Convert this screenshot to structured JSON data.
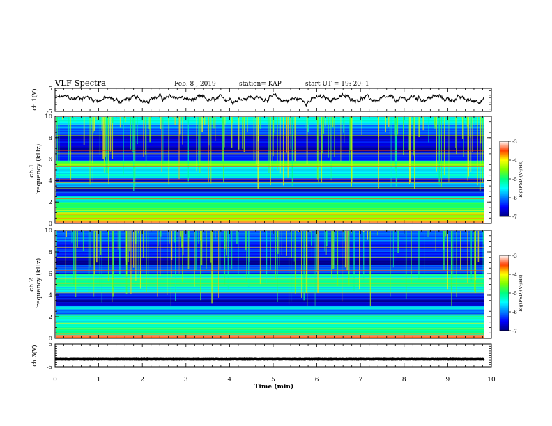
{
  "header": {
    "title": "VLF Spectra",
    "date": "Feb. 8  , 2019",
    "station": "station= KAP",
    "start_ut": "start  UT =   19: 20: 1"
  },
  "colorbar": {
    "ticks": [
      "-3",
      "-4",
      "-5",
      "-6",
      "-7"
    ],
    "label": "log(PSD)(V²/Hz)",
    "range": [
      -7,
      -3
    ]
  },
  "chart_data": [
    {
      "type": "line",
      "name": "ch1-waveform-panel",
      "ylabel": "ch.1(V)",
      "ylim": [
        -5,
        5
      ],
      "yticks": [
        "5",
        "-5"
      ],
      "xlim": [
        0,
        10
      ],
      "approx_level": 0.5,
      "approx_amplitude": 1.8
    },
    {
      "type": "heatmap",
      "name": "ch1-spectrogram",
      "ylabel_lines": [
        "ch.1",
        "Frequency (kHz)"
      ],
      "ylim": [
        0,
        10
      ],
      "yticks": [
        "0",
        "2",
        "4",
        "6",
        "8",
        "10"
      ],
      "xlim": [
        0,
        10
      ],
      "data_end_min": 9.83,
      "bands": [
        {
          "from": 0.0,
          "to": 0.3,
          "level": -3.6
        },
        {
          "from": 0.3,
          "to": 1.0,
          "level": -4.4
        },
        {
          "from": 1.0,
          "to": 1.9,
          "level": -4.9
        },
        {
          "from": 1.9,
          "to": 2.5,
          "level": -5.3
        },
        {
          "from": 2.5,
          "to": 2.9,
          "level": -6.2
        },
        {
          "from": 2.9,
          "to": 3.4,
          "level": -6.9
        },
        {
          "from": 3.4,
          "to": 3.9,
          "level": -5.8
        },
        {
          "from": 3.9,
          "to": 4.2,
          "level": -6.6
        },
        {
          "from": 4.2,
          "to": 5.3,
          "level": -5.5
        },
        {
          "from": 5.3,
          "to": 5.8,
          "level": -4.7
        },
        {
          "from": 5.8,
          "to": 6.6,
          "level": -6.4
        },
        {
          "from": 6.6,
          "to": 7.2,
          "level": -6.8
        },
        {
          "from": 7.2,
          "to": 8.3,
          "level": -6.6
        },
        {
          "from": 8.3,
          "to": 9.2,
          "level": -6.1
        },
        {
          "from": 9.2,
          "to": 10.0,
          "level": -5.5
        }
      ],
      "lines_khz": [
        0.5,
        0.8,
        1.2,
        2.3,
        3.3,
        3.8,
        4.1,
        5.3,
        5.5,
        6.5,
        6.8,
        7.3,
        8.2,
        9.2
      ]
    },
    {
      "type": "heatmap",
      "name": "ch2-spectrogram",
      "ylabel_lines": [
        "ch.2",
        "Frequency (kHz)"
      ],
      "ylim": [
        0,
        10
      ],
      "yticks": [
        "0",
        "2",
        "4",
        "6",
        "8",
        "10"
      ],
      "xlim": [
        0,
        10
      ],
      "data_end_min": 9.83,
      "bands": [
        {
          "from": 0.0,
          "to": 0.3,
          "level": -3.4
        },
        {
          "from": 0.3,
          "to": 1.0,
          "level": -5.0
        },
        {
          "from": 1.0,
          "to": 2.2,
          "level": -5.3
        },
        {
          "from": 2.2,
          "to": 2.6,
          "level": -6.1
        },
        {
          "from": 2.6,
          "to": 3.0,
          "level": -5.6
        },
        {
          "from": 3.0,
          "to": 3.6,
          "level": -6.9
        },
        {
          "from": 3.6,
          "to": 4.2,
          "level": -6.6
        },
        {
          "from": 4.2,
          "to": 4.8,
          "level": -5.4
        },
        {
          "from": 4.8,
          "to": 6.0,
          "level": -5.2
        },
        {
          "from": 6.0,
          "to": 6.8,
          "level": -6.3
        },
        {
          "from": 6.8,
          "to": 7.5,
          "level": -6.9
        },
        {
          "from": 7.5,
          "to": 9.0,
          "level": -6.4
        },
        {
          "from": 9.0,
          "to": 10.0,
          "level": -6.2
        }
      ],
      "lines_khz": [
        0.4,
        0.9,
        1.4,
        2.8,
        3.0,
        4.2,
        4.5,
        5.1,
        5.5,
        6.3,
        6.6,
        7.5,
        8.4
      ]
    },
    {
      "type": "line",
      "name": "ch3-waveform-panel",
      "ylabel": "ch.3(V)",
      "ylim": [
        -5,
        5
      ],
      "yticks": [
        "5",
        "-5"
      ],
      "xlim": [
        0,
        10
      ],
      "approx_level": -1.5,
      "approx_amplitude": 0.15
    }
  ],
  "xaxis": {
    "label": "Time  (min)",
    "ticks": [
      "0",
      "1",
      "2",
      "3",
      "4",
      "5",
      "6",
      "7",
      "8",
      "9",
      "10"
    ]
  }
}
